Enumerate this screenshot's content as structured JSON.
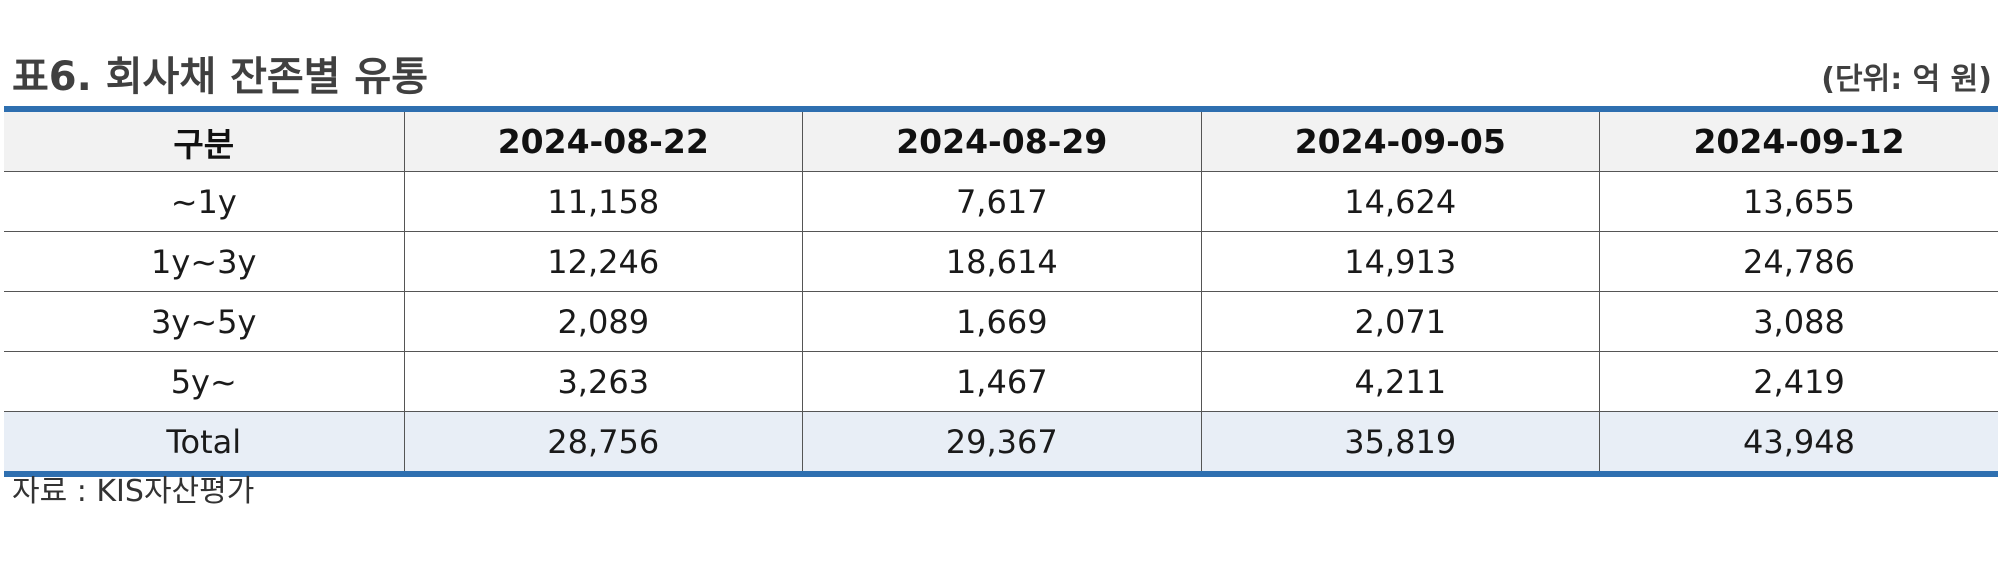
{
  "title": "표6. 회사채 잔존별 유통",
  "unit": "(단위: 억 원)",
  "table": {
    "headers": [
      "구분",
      "2024-08-22",
      "2024-08-29",
      "2024-09-05",
      "2024-09-12"
    ],
    "rows": [
      [
        "~1y",
        "11,158",
        "7,617",
        "14,624",
        "13,655"
      ],
      [
        "1y~3y",
        "12,246",
        "18,614",
        "14,913",
        "24,786"
      ],
      [
        "3y~5y",
        "2,089",
        "1,669",
        "2,071",
        "3,088"
      ],
      [
        "5y~",
        "3,263",
        "1,467",
        "4,211",
        "2,419"
      ]
    ],
    "total": [
      "Total",
      "28,756",
      "29,367",
      "35,819",
      "43,948"
    ]
  },
  "source": "자료 : KIS자산평가",
  "colors": {
    "rule": "#2e6fb0",
    "header_bg": "#f2f2f2",
    "total_bg": "#e8eef6"
  }
}
